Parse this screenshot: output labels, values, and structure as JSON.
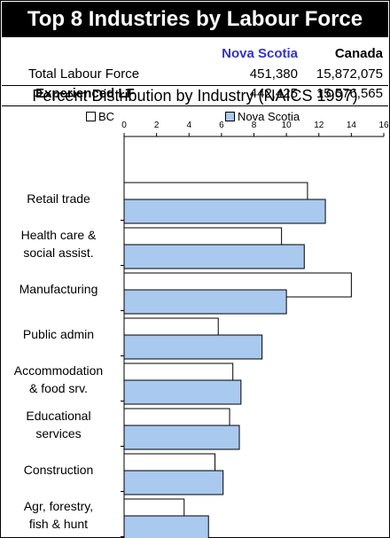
{
  "title": "Top 8 Industries by Labour Force",
  "stats": {
    "columns": [
      "",
      "Nova Scotia",
      "Canada"
    ],
    "rows": [
      {
        "label": "Total Labour Force",
        "ns": "451,380",
        "canada": "15,872,075"
      },
      {
        "label": "Experienced LF",
        "ns": "442,425",
        "canada": "15,576,565"
      }
    ]
  },
  "chart_data": {
    "type": "bar",
    "orientation": "horizontal",
    "title": "Percent Distribution by Industry (NAICS 1997)",
    "categories": [
      "Retail trade",
      "Health care & social assist.",
      "Manufacturing",
      "Public admin",
      "Accommodation & food srv.",
      "Educational services",
      "Construction",
      "Agr, forestry, fish & hunt"
    ],
    "category_lines": [
      [
        "Retail trade"
      ],
      [
        "Health care &",
        "social assist."
      ],
      [
        "Manufacturing"
      ],
      [
        "Public admin"
      ],
      [
        "Accommodation",
        "& food srv."
      ],
      [
        "Educational",
        "services"
      ],
      [
        "Construction"
      ],
      [
        "Agr, forestry,",
        "fish & hunt"
      ]
    ],
    "series": [
      {
        "name": "BC",
        "color": "#ffffff",
        "values": [
          11.3,
          9.7,
          14.0,
          5.8,
          6.7,
          6.5,
          5.6,
          3.7
        ]
      },
      {
        "name": "Nova Scotia",
        "color": "#a9c9ef",
        "values": [
          12.4,
          11.1,
          10.0,
          8.5,
          7.2,
          7.1,
          6.1,
          5.2
        ]
      }
    ],
    "xlim": [
      0,
      16
    ],
    "xticks": [
      "0",
      "2",
      "4",
      "6",
      "8",
      "10",
      "12",
      "14",
      "16"
    ],
    "legend_position": "top",
    "grid": false
  }
}
